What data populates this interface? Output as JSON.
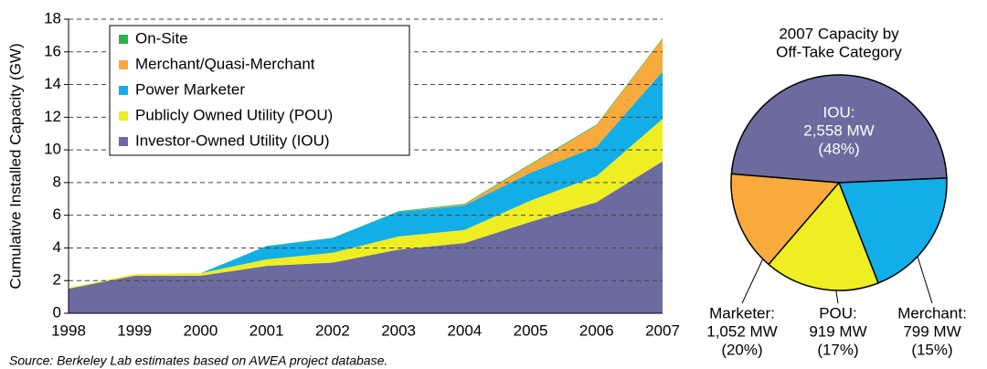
{
  "chart_data": [
    {
      "type": "stacked_area",
      "y_label": "Cumulative Installed Capacity (GW)",
      "categories": [
        "1998",
        "1999",
        "2000",
        "2001",
        "2002",
        "2003",
        "2004",
        "2005",
        "2006",
        "2007"
      ],
      "ylim": [
        0,
        18
      ],
      "yticks": [
        0,
        2,
        4,
        6,
        8,
        10,
        12,
        14,
        16,
        18
      ],
      "grid": true,
      "series": [
        {
          "name": "Investor-Owned Utility (IOU)",
          "color": "#6b6b9f",
          "values": [
            1.5,
            2.3,
            2.3,
            2.9,
            3.1,
            3.9,
            4.3,
            5.6,
            6.8,
            9.3
          ]
        },
        {
          "name": "Publicly Owned Utility (POU)",
          "color": "#eeee22",
          "values": [
            0.05,
            0.1,
            0.15,
            0.4,
            0.6,
            0.8,
            0.8,
            1.3,
            1.6,
            2.6
          ]
        },
        {
          "name": "Power Marketer",
          "color": "#12aee8",
          "values": [
            0,
            0,
            0,
            0.8,
            0.9,
            1.5,
            1.5,
            1.7,
            1.8,
            2.9
          ]
        },
        {
          "name": "Merchant/Quasi-Merchant",
          "color": "#f9aa3c",
          "values": [
            0,
            0,
            0,
            0,
            0,
            0,
            0.05,
            0.5,
            1.3,
            2.0
          ]
        },
        {
          "name": "On-Site",
          "color": "#2bb34a",
          "values": [
            0,
            0,
            0,
            0.02,
            0.02,
            0.05,
            0.05,
            0.05,
            0.05,
            0.05
          ]
        }
      ]
    },
    {
      "type": "pie",
      "title_lines": [
        "2007 Capacity by",
        "Off-Take Category"
      ],
      "categories": [
        "IOU:",
        "Marketer:",
        "POU:",
        "Merchant:"
      ],
      "values": [
        2558,
        1052,
        919,
        799
      ],
      "value_labels": [
        "2,558 MW",
        "1,052 MW",
        "919 MW",
        "799 MW"
      ],
      "percents": [
        48,
        20,
        17,
        15
      ],
      "percent_labels": [
        "(48%)",
        "(20%)",
        "(17%)",
        "(15%)"
      ],
      "colors": [
        "#6b6b9f",
        "#12aee8",
        "#eeee22",
        "#f9aa3c"
      ]
    }
  ],
  "source": "Source: Berkeley Lab estimates based on AWEA project database."
}
